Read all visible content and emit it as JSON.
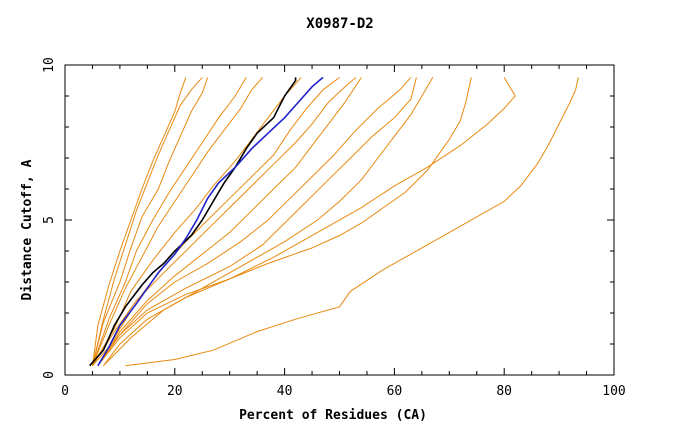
{
  "chart_data": {
    "type": "line",
    "title": "X0987-D2",
    "xlabel": "Percent of Residues (CA)",
    "ylabel": "Distance Cutoff, A",
    "xlim": [
      0,
      100
    ],
    "ylim": [
      0,
      10
    ],
    "x_ticks": [
      "0",
      "20",
      "40",
      "60",
      "80",
      "100"
    ],
    "y_ticks": [
      "0",
      "5",
      "10"
    ],
    "grid": false,
    "series": [
      {
        "name": "orange-1",
        "color": "#e88a10",
        "points": [
          [
            11,
            0.3
          ],
          [
            20,
            0.5
          ],
          [
            27,
            0.8
          ],
          [
            35,
            1.4
          ],
          [
            42,
            1.8
          ],
          [
            50,
            2.2
          ],
          [
            52,
            2.7
          ],
          [
            58,
            3.4
          ],
          [
            65,
            4.1
          ],
          [
            72,
            4.8
          ],
          [
            80,
            5.6
          ],
          [
            83,
            6.1
          ],
          [
            86,
            6.8
          ],
          [
            88,
            7.4
          ],
          [
            90,
            8.1
          ],
          [
            92,
            8.8
          ],
          [
            93,
            9.2
          ],
          [
            93.5,
            9.6
          ]
        ]
      },
      {
        "name": "orange-2",
        "color": "#e88a10",
        "points": [
          [
            6,
            0.3
          ],
          [
            10,
            1.2
          ],
          [
            15,
            2.0
          ],
          [
            22,
            2.6
          ],
          [
            30,
            3.1
          ],
          [
            37,
            3.6
          ],
          [
            45,
            4.1
          ],
          [
            50,
            4.5
          ],
          [
            54,
            4.9
          ],
          [
            58,
            5.4
          ],
          [
            62,
            5.9
          ],
          [
            66,
            6.6
          ],
          [
            68,
            7.1
          ],
          [
            70,
            7.6
          ],
          [
            72,
            8.2
          ],
          [
            73,
            8.8
          ],
          [
            74,
            9.6
          ]
        ]
      },
      {
        "name": "orange-3",
        "color": "#e88a10",
        "points": [
          [
            7,
            0.3
          ],
          [
            10,
            1.0
          ],
          [
            15,
            1.8
          ],
          [
            22,
            2.5
          ],
          [
            30,
            3.1
          ],
          [
            38,
            3.8
          ],
          [
            46,
            4.6
          ],
          [
            54,
            5.4
          ],
          [
            60,
            6.1
          ],
          [
            66,
            6.7
          ],
          [
            72,
            7.4
          ],
          [
            77,
            8.1
          ],
          [
            80,
            8.6
          ],
          [
            82,
            9.0
          ],
          [
            80,
            9.6
          ]
        ]
      },
      {
        "name": "orange-4",
        "color": "#e88a10",
        "points": [
          [
            7,
            0.3
          ],
          [
            12,
            1.2
          ],
          [
            18,
            2.1
          ],
          [
            25,
            2.8
          ],
          [
            33,
            3.6
          ],
          [
            40,
            4.3
          ],
          [
            46,
            5.0
          ],
          [
            50,
            5.6
          ],
          [
            54,
            6.3
          ],
          [
            57,
            7.0
          ],
          [
            60,
            7.7
          ],
          [
            63,
            8.4
          ],
          [
            65,
            9.0
          ],
          [
            67,
            9.6
          ]
        ]
      },
      {
        "name": "orange-5",
        "color": "#e88a10",
        "points": [
          [
            5,
            0.3
          ],
          [
            10,
            1.3
          ],
          [
            15,
            2.1
          ],
          [
            22,
            2.8
          ],
          [
            30,
            3.5
          ],
          [
            36,
            4.2
          ],
          [
            40,
            4.9
          ],
          [
            44,
            5.6
          ],
          [
            48,
            6.3
          ],
          [
            52,
            7.0
          ],
          [
            56,
            7.7
          ],
          [
            60,
            8.3
          ],
          [
            63,
            8.9
          ],
          [
            64,
            9.6
          ]
        ]
      },
      {
        "name": "orange-6",
        "color": "#e88a10",
        "points": [
          [
            6,
            0.3
          ],
          [
            10,
            1.3
          ],
          [
            15,
            2.3
          ],
          [
            20,
            3.0
          ],
          [
            26,
            3.6
          ],
          [
            32,
            4.3
          ],
          [
            37,
            5.0
          ],
          [
            41,
            5.7
          ],
          [
            45,
            6.4
          ],
          [
            49,
            7.1
          ],
          [
            53,
            7.9
          ],
          [
            57,
            8.6
          ],
          [
            61,
            9.2
          ],
          [
            63,
            9.6
          ]
        ]
      },
      {
        "name": "orange-7",
        "color": "#e88a10",
        "points": [
          [
            6,
            0.3
          ],
          [
            10,
            1.4
          ],
          [
            15,
            2.4
          ],
          [
            20,
            3.2
          ],
          [
            25,
            3.9
          ],
          [
            30,
            4.6
          ],
          [
            34,
            5.3
          ],
          [
            38,
            6.0
          ],
          [
            42,
            6.7
          ],
          [
            45,
            7.4
          ],
          [
            48,
            8.1
          ],
          [
            51,
            8.8
          ],
          [
            54,
            9.6
          ]
        ]
      },
      {
        "name": "orange-8",
        "color": "#e88a10",
        "points": [
          [
            5,
            0.3
          ],
          [
            9,
            1.4
          ],
          [
            13,
            2.4
          ],
          [
            18,
            3.3
          ],
          [
            22,
            4.0
          ],
          [
            26,
            4.7
          ],
          [
            30,
            5.4
          ],
          [
            34,
            6.1
          ],
          [
            38,
            6.8
          ],
          [
            42,
            7.5
          ],
          [
            45,
            8.1
          ],
          [
            48,
            8.8
          ],
          [
            51,
            9.3
          ],
          [
            53,
            9.6
          ]
        ]
      },
      {
        "name": "orange-9",
        "color": "#e88a10",
        "points": [
          [
            6,
            0.3
          ],
          [
            10,
            1.5
          ],
          [
            14,
            2.6
          ],
          [
            18,
            3.5
          ],
          [
            22,
            4.3
          ],
          [
            26,
            5.0
          ],
          [
            30,
            5.7
          ],
          [
            34,
            6.4
          ],
          [
            38,
            7.1
          ],
          [
            41,
            7.9
          ],
          [
            44,
            8.6
          ],
          [
            47,
            9.2
          ],
          [
            50,
            9.6
          ]
        ]
      },
      {
        "name": "orange-10",
        "color": "#e88a10",
        "points": [
          [
            5,
            0.3
          ],
          [
            9,
            1.5
          ],
          [
            12,
            2.7
          ],
          [
            16,
            3.7
          ],
          [
            20,
            4.6
          ],
          [
            24,
            5.4
          ],
          [
            27,
            6.1
          ],
          [
            31,
            6.9
          ],
          [
            34,
            7.6
          ],
          [
            37,
            8.3
          ],
          [
            40,
            9.0
          ],
          [
            43,
            9.6
          ]
        ]
      },
      {
        "name": "orange-11",
        "color": "#e88a10",
        "points": [
          [
            5,
            0.3
          ],
          [
            8,
            1.6
          ],
          [
            11,
            2.8
          ],
          [
            14,
            3.8
          ],
          [
            17,
            4.8
          ],
          [
            20,
            5.6
          ],
          [
            23,
            6.4
          ],
          [
            26,
            7.2
          ],
          [
            29,
            7.9
          ],
          [
            32,
            8.6
          ],
          [
            34,
            9.2
          ],
          [
            36,
            9.6
          ]
        ]
      },
      {
        "name": "orange-12",
        "color": "#e88a10",
        "points": [
          [
            5,
            0.3
          ],
          [
            8,
            1.8
          ],
          [
            11,
            3.0
          ],
          [
            13,
            4.0
          ],
          [
            16,
            5.0
          ],
          [
            19,
            5.9
          ],
          [
            22,
            6.7
          ],
          [
            25,
            7.5
          ],
          [
            28,
            8.3
          ],
          [
            31,
            9.0
          ],
          [
            33,
            9.6
          ]
        ]
      },
      {
        "name": "orange-13",
        "color": "#e88a10",
        "points": [
          [
            5,
            0.3
          ],
          [
            7,
            1.7
          ],
          [
            10,
            3.0
          ],
          [
            12,
            4.1
          ],
          [
            14,
            5.1
          ],
          [
            17,
            6.0
          ],
          [
            19,
            6.9
          ],
          [
            21,
            7.7
          ],
          [
            23,
            8.5
          ],
          [
            25,
            9.1
          ],
          [
            26,
            9.6
          ]
        ]
      },
      {
        "name": "orange-14",
        "color": "#e88a10",
        "points": [
          [
            5,
            0.3
          ],
          [
            7,
            1.8
          ],
          [
            9,
            3.1
          ],
          [
            11,
            4.2
          ],
          [
            13,
            5.3
          ],
          [
            15,
            6.2
          ],
          [
            17,
            7.1
          ],
          [
            19,
            7.9
          ],
          [
            21,
            8.7
          ],
          [
            23,
            9.2
          ],
          [
            25,
            9.6
          ]
        ]
      },
      {
        "name": "orange-15",
        "color": "#e88a10",
        "points": [
          [
            5,
            0.3
          ],
          [
            6,
            1.6
          ],
          [
            8,
            2.9
          ],
          [
            10,
            4.0
          ],
          [
            12,
            5.0
          ],
          [
            14,
            6.0
          ],
          [
            16,
            6.9
          ],
          [
            18,
            7.7
          ],
          [
            20,
            8.5
          ],
          [
            21,
            9.1
          ],
          [
            22,
            9.6
          ]
        ]
      },
      {
        "name": "black",
        "color": "#000000",
        "points": [
          [
            4.5,
            0.3
          ],
          [
            7,
            0.8
          ],
          [
            9,
            1.6
          ],
          [
            11,
            2.2
          ],
          [
            14,
            2.9
          ],
          [
            16,
            3.3
          ],
          [
            18,
            3.6
          ],
          [
            20,
            4.0
          ],
          [
            23,
            4.5
          ],
          [
            25,
            5.0
          ],
          [
            27,
            5.6
          ],
          [
            29,
            6.2
          ],
          [
            31,
            6.7
          ],
          [
            33,
            7.3
          ],
          [
            35,
            7.8
          ],
          [
            38,
            8.3
          ],
          [
            40,
            9.0
          ],
          [
            42,
            9.5
          ],
          [
            42,
            9.6
          ]
        ]
      },
      {
        "name": "blue",
        "color": "#2222cc",
        "points": [
          [
            6,
            0.3
          ],
          [
            8,
            0.9
          ],
          [
            10,
            1.6
          ],
          [
            13,
            2.3
          ],
          [
            15,
            2.8
          ],
          [
            17,
            3.3
          ],
          [
            20,
            3.9
          ],
          [
            22,
            4.4
          ],
          [
            24,
            5.0
          ],
          [
            26,
            5.7
          ],
          [
            28,
            6.2
          ],
          [
            31,
            6.7
          ],
          [
            34,
            7.3
          ],
          [
            37,
            7.8
          ],
          [
            40,
            8.3
          ],
          [
            43,
            8.9
          ],
          [
            45,
            9.3
          ],
          [
            47,
            9.6
          ]
        ]
      }
    ]
  }
}
